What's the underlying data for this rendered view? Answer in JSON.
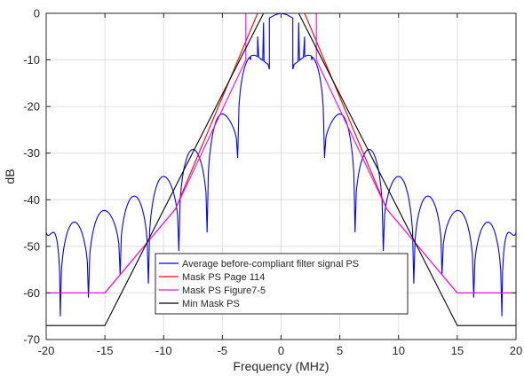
{
  "chart_data": {
    "type": "line",
    "title": "",
    "xlabel": "Frequency (MHz)",
    "ylabel": "dB",
    "xlim": [
      -20,
      20
    ],
    "ylim": [
      -70,
      0
    ],
    "grid": true,
    "legend_position": "bottom-center",
    "x_ticks": [
      -20,
      -15,
      -10,
      -5,
      0,
      5,
      10,
      15,
      20
    ],
    "y_ticks": [
      0,
      -10,
      -20,
      -30,
      -40,
      -50,
      -60,
      -70
    ],
    "x_tick_labels": [
      "-20",
      "-15",
      "-10",
      "-5",
      "0",
      "5",
      "10",
      "15",
      "20"
    ],
    "y_tick_labels": [
      "0",
      "-10",
      "-20",
      "-30",
      "-40",
      "-50",
      "-60",
      "-70"
    ],
    "series": [
      {
        "name": "Average before-compliant filter signal PS",
        "color": "#0000ff",
        "style": "sinc-lobes",
        "main_lobe": [
          [
            -2.6,
            -10
          ],
          [
            -2.0,
            -5
          ],
          [
            -1.5,
            -2
          ],
          [
            -1.0,
            -1
          ],
          [
            -0.5,
            -0.3
          ],
          [
            0,
            0
          ],
          [
            0.5,
            -0.3
          ],
          [
            1.0,
            -1
          ],
          [
            1.5,
            -2
          ],
          [
            2.0,
            -5
          ],
          [
            2.6,
            -10
          ]
        ],
        "nulls": [
          -20,
          -18.8,
          -16.4,
          -13.7,
          -11.3,
          -8.7,
          -6.3,
          -3.7,
          -1.0,
          1.0,
          3.7,
          6.3,
          8.7,
          11.3,
          13.7,
          16.4,
          18.8,
          20
        ],
        "null_depths": [
          -47.0,
          -65,
          -61,
          -56,
          -58,
          -51,
          -47,
          -31,
          -12,
          -12,
          -31,
          -47,
          -51,
          -58,
          -56,
          -61,
          -65,
          -47.0
        ],
        "peaks": [
          -47.0,
          -44.8,
          -42.3,
          -39.2,
          -35.0,
          -29.2,
          -21.6,
          0,
          -21.6,
          -29.2,
          -35.0,
          -39.2,
          -42.3,
          -44.8,
          -47.0
        ],
        "peak_x": [
          -20,
          -17.5,
          -15.0,
          -12.5,
          -10.0,
          -7.5,
          -5.0,
          0,
          5.0,
          7.5,
          10.0,
          12.5,
          15.0,
          17.5,
          20
        ]
      },
      {
        "name": "Mask PS Page 114",
        "color": "#ff0000",
        "x": [
          -20,
          -15,
          -11,
          -9,
          -2,
          -1.2,
          1.2,
          2,
          9,
          11,
          15,
          20
        ],
        "y": [
          -60,
          -60,
          -48,
          -42,
          0,
          0,
          0,
          0,
          -42,
          -48,
          -60,
          -60
        ]
      },
      {
        "name": "Mask PS Figure7-5",
        "color": "#ff00ff",
        "x": [
          -20,
          -15,
          -11,
          -9,
          -3.0,
          -3.0,
          3.0,
          3.0,
          9,
          11,
          15,
          20
        ],
        "y": [
          -60,
          -60,
          -48,
          -42,
          -10,
          0,
          0,
          -10,
          -42,
          -48,
          -60,
          -60
        ]
      },
      {
        "name": "Min Mask PS",
        "color": "#000000",
        "x": [
          -20,
          -15,
          -1.5,
          1.5,
          15,
          20
        ],
        "y": [
          -67,
          -67,
          0,
          0,
          -67,
          -67
        ]
      }
    ]
  }
}
